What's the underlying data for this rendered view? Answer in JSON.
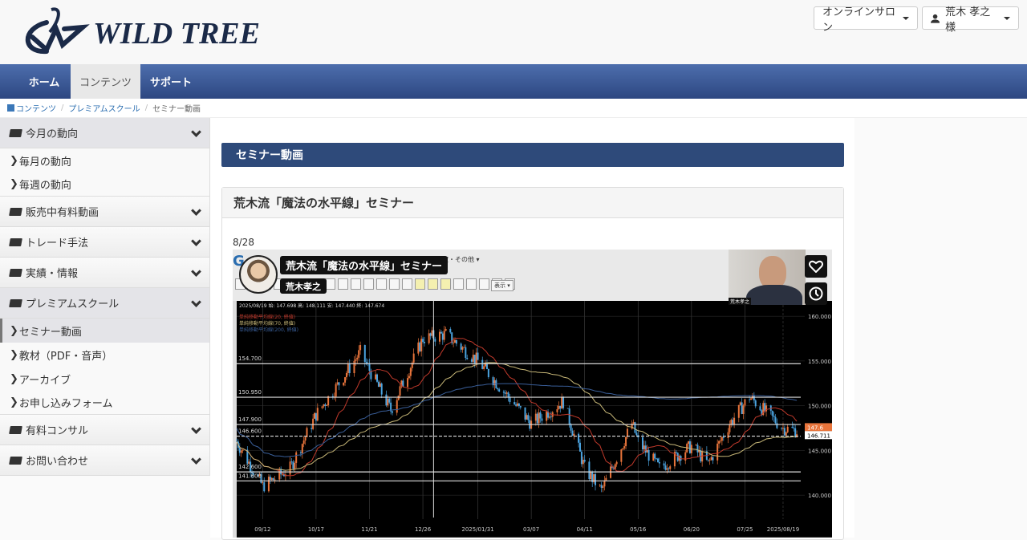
{
  "header": {
    "logo_text": "WILD TREE",
    "salon_button": "オンラインサロン",
    "user_button": "荒木 孝之 様"
  },
  "nav": {
    "tabs": [
      {
        "label": "ホーム"
      },
      {
        "label": "コンテンツ",
        "active": true
      },
      {
        "label": "サポート"
      }
    ]
  },
  "breadcrumb": [
    "コンテンツ",
    "プレミアムスクール",
    "セミナー動画"
  ],
  "sidebar": {
    "groups": [
      {
        "label": "今月の動向",
        "items": [
          "毎月の動向",
          "毎週の動向"
        ]
      },
      {
        "label": "販売中有料動画",
        "items": []
      },
      {
        "label": "トレード手法",
        "items": []
      },
      {
        "label": "実績・情報",
        "items": []
      },
      {
        "label": "プレミアムスクール",
        "items": [
          "セミナー動画",
          "教材（PDF・音声）",
          "アーカイブ",
          "お申し込みフォーム"
        ],
        "active_item": "セミナー動画"
      },
      {
        "label": "有料コンサル",
        "items": []
      },
      {
        "label": "お問い合わせ",
        "items": []
      }
    ]
  },
  "main": {
    "page_title": "セミナー動画",
    "panel_title": "荒木流「魔法の水平線」セミナー",
    "video_date": "8/28"
  },
  "video": {
    "title_overlay": "荒木流「魔法の水平線」セミナー",
    "presenter": "荒木孝之",
    "toolbar_menu": "設定・その他 ▾",
    "display_menu": "表示 ▾",
    "webcam_label": "荒木孝之",
    "icons": [
      "heart-icon",
      "clock-icon"
    ]
  },
  "chart_data": {
    "type": "candlestick",
    "info": "2025/08/19 始: 147.698 高: 148.111 安: 147.440 終: 147.674",
    "legend": [
      "単純移動平均線(20, 終値)",
      "単純移動平均線(70, 終値)",
      "単純移動平均線(200, 終値)"
    ],
    "legend_colors": [
      "#c0392b",
      "#c8b878",
      "#3a5f9a"
    ],
    "y_ticks": [
      "160.000",
      "155.000",
      "150.000",
      "145.000",
      "140.000"
    ],
    "ylim": [
      137.5,
      161
    ],
    "x_ticks": [
      "09/12",
      "10/17",
      "11/21",
      "12/26",
      "2025/01/31",
      "03/07",
      "04/11",
      "05/16",
      "06/20",
      "07/25",
      "2025/08/19"
    ],
    "horizontal_lines": [
      "154.700",
      "150.950",
      "147.900",
      "146.600",
      "142.600",
      "141.600"
    ],
    "price_labels": [
      "147.6",
      "146.711"
    ],
    "price_path": [
      [
        "2024-08-26",
        146
      ],
      [
        "2024-09-12",
        141
      ],
      [
        "2024-09-30",
        143
      ],
      [
        "2024-10-17",
        149
      ],
      [
        "2024-11-01",
        152.5
      ],
      [
        "2024-11-15",
        156
      ],
      [
        "2024-11-21",
        154
      ],
      [
        "2024-12-05",
        149.5
      ],
      [
        "2024-12-26",
        157.5
      ],
      [
        "2025-01-10",
        158
      ],
      [
        "2025-01-31",
        155
      ],
      [
        "2025-02-20",
        151
      ],
      [
        "2025-03-07",
        148
      ],
      [
        "2025-03-28",
        150.5
      ],
      [
        "2025-04-11",
        143
      ],
      [
        "2025-04-22",
        140.5
      ],
      [
        "2025-05-12",
        148
      ],
      [
        "2025-05-16",
        146
      ],
      [
        "2025-05-30",
        143
      ],
      [
        "2025-06-20",
        145.5
      ],
      [
        "2025-07-01",
        143.5
      ],
      [
        "2025-07-15",
        148
      ],
      [
        "2025-07-28",
        151
      ],
      [
        "2025-08-19",
        147.5
      ],
      [
        "2025-08-28",
        147.2
      ]
    ],
    "up_color": "#e8743b",
    "down_color": "#4aa3df"
  }
}
